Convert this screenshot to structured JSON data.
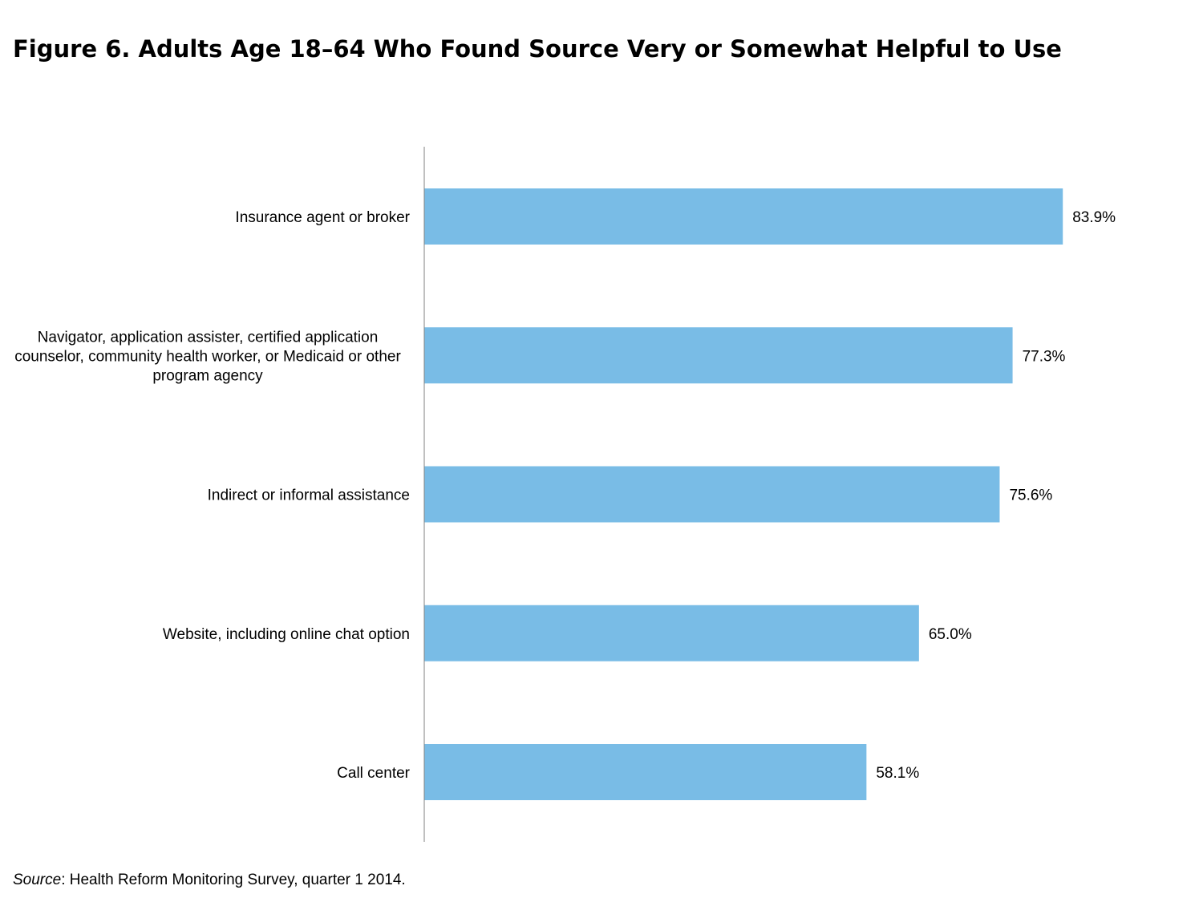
{
  "title": "Figure 6. Adults Age 18–64 Who Found Source Very or Somewhat Helpful to Use",
  "source": {
    "label": "Source",
    "text": ": Health Reform Monitoring Survey, quarter 1 2014."
  },
  "chart_data": {
    "type": "bar",
    "orientation": "horizontal",
    "title": "Figure 6. Adults Age 18–64 Who Found Source Very or Somewhat Helpful to Use",
    "xlabel": "",
    "ylabel": "",
    "xlim": [
      0,
      100
    ],
    "grid": false,
    "legend": "none",
    "bar_color": "#79BCE6",
    "axis_color": "#808080",
    "categories": [
      [
        "Insurance agent or broker"
      ],
      [
        "Navigator, application assister, certified application",
        "counselor, community health worker, or Medicaid or other",
        "program agency"
      ],
      [
        "Indirect or informal assistance"
      ],
      [
        "Website, including online chat option"
      ],
      [
        "Call center"
      ]
    ],
    "values": [
      83.9,
      77.3,
      75.6,
      65.0,
      58.1
    ],
    "data_labels": [
      "83.9%",
      "77.3%",
      "75.6%",
      "65.0%",
      "58.1%"
    ]
  }
}
